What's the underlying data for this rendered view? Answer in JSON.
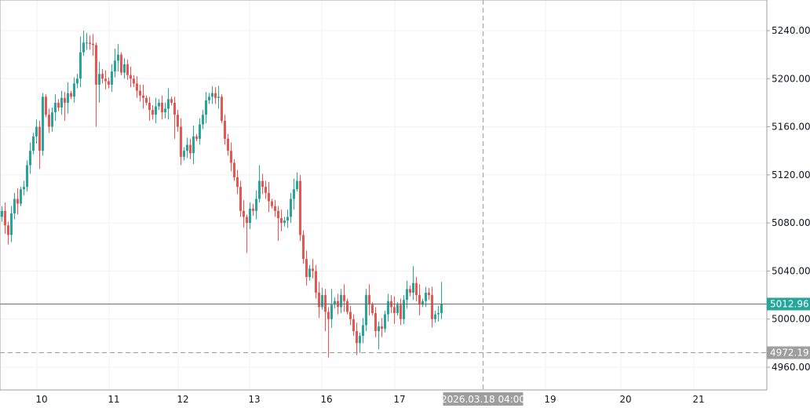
{
  "chart_data": {
    "type": "candlestick",
    "title": "",
    "colors": {
      "up": "#26a69a",
      "down": "#ef5350",
      "grid": "#f0f0f0",
      "axis": "#9e9e9e",
      "last_price_bg": "#26a69a",
      "crosshair_bg": "#9e9e9e"
    },
    "y_axis": {
      "range": [
        4940,
        5265
      ],
      "ticks": [
        "5240.00",
        "5200.00",
        "5160.00",
        "5120.00",
        "5080.00",
        "5040.00",
        "5000.00",
        "4960.00"
      ],
      "tick_values": [
        5240,
        5200,
        5160,
        5120,
        5080,
        5040,
        5000,
        4960
      ],
      "position": "right"
    },
    "x_axis": {
      "unit": "bar index",
      "range": [
        -0.5,
        243.75
      ],
      "labels": [
        {
          "text": "10",
          "bar": 12.75
        },
        {
          "text": "11",
          "bar": 35.75
        },
        {
          "text": "12",
          "bar": 57.75
        },
        {
          "text": "13",
          "bar": 80.5
        },
        {
          "text": "16",
          "bar": 103.5
        },
        {
          "text": "17",
          "bar": 126.75
        },
        {
          "text": "19",
          "bar": 174.75
        },
        {
          "text": "20",
          "bar": 198.75
        },
        {
          "text": "21",
          "bar": 222
        }
      ]
    },
    "last_price": {
      "value": 5012.96,
      "label": "5012.96"
    },
    "crosshair": {
      "price": 4972.19,
      "price_label": "4972.19",
      "bar": 153.25,
      "time_label": "2026.03.18 04:00"
    },
    "ohlc": [
      [
        5085,
        5094,
        5081,
        5090
      ],
      [
        5090,
        5097,
        5071,
        5078
      ],
      [
        5078,
        5081,
        5062,
        5070
      ],
      [
        5070,
        5094,
        5064,
        5088
      ],
      [
        5088,
        5105,
        5083,
        5100
      ],
      [
        5100,
        5109,
        5087,
        5096
      ],
      [
        5096,
        5110,
        5094,
        5108
      ],
      [
        5108,
        5115,
        5103,
        5110
      ],
      [
        5110,
        5132,
        5106,
        5128
      ],
      [
        5128,
        5147,
        5121,
        5140
      ],
      [
        5140,
        5155,
        5137,
        5152
      ],
      [
        5152,
        5166,
        5146,
        5160
      ],
      [
        5160,
        5165,
        5125,
        5140
      ],
      [
        5140,
        5188,
        5136,
        5185
      ],
      [
        5185,
        5187,
        5168,
        5170
      ],
      [
        5170,
        5175,
        5155,
        5160
      ],
      [
        5160,
        5176,
        5156,
        5172
      ],
      [
        5172,
        5187,
        5165,
        5180
      ],
      [
        5180,
        5183,
        5173,
        5176
      ],
      [
        5176,
        5190,
        5170,
        5184
      ],
      [
        5184,
        5189,
        5165,
        5180
      ],
      [
        5180,
        5197,
        5171,
        5188
      ],
      [
        5188,
        5190,
        5183,
        5185
      ],
      [
        5185,
        5201,
        5180,
        5196
      ],
      [
        5196,
        5204,
        5192,
        5200
      ],
      [
        5200,
        5235,
        5193,
        5222
      ],
      [
        5222,
        5240,
        5219,
        5230
      ],
      [
        5230,
        5238,
        5224,
        5230
      ],
      [
        5230,
        5236,
        5224,
        5229
      ],
      [
        5229,
        5237,
        5219,
        5228
      ],
      [
        5228,
        5230,
        5160,
        5195
      ],
      [
        5195,
        5214,
        5180,
        5204
      ],
      [
        5204,
        5208,
        5196,
        5200
      ],
      [
        5200,
        5207,
        5191,
        5198
      ],
      [
        5198,
        5201,
        5192,
        5195
      ],
      [
        5195,
        5212,
        5189,
        5206
      ],
      [
        5206,
        5225,
        5201,
        5215
      ],
      [
        5215,
        5229,
        5206,
        5220
      ],
      [
        5220,
        5222,
        5203,
        5205
      ],
      [
        5205,
        5217,
        5200,
        5212
      ],
      [
        5212,
        5216,
        5199,
        5203
      ],
      [
        5203,
        5210,
        5193,
        5200
      ],
      [
        5200,
        5203,
        5193,
        5196
      ],
      [
        5196,
        5202,
        5184,
        5190
      ],
      [
        5190,
        5195,
        5181,
        5186
      ],
      [
        5186,
        5195,
        5175,
        5184
      ],
      [
        5184,
        5186,
        5178,
        5180
      ],
      [
        5180,
        5185,
        5165,
        5174
      ],
      [
        5174,
        5178,
        5166,
        5170
      ],
      [
        5170,
        5184,
        5163,
        5177
      ],
      [
        5177,
        5183,
        5174,
        5180
      ],
      [
        5180,
        5186,
        5166,
        5172
      ],
      [
        5172,
        5180,
        5167,
        5175
      ],
      [
        5175,
        5192,
        5166,
        5183
      ],
      [
        5183,
        5185,
        5178,
        5180
      ],
      [
        5180,
        5185,
        5150,
        5170
      ],
      [
        5170,
        5174,
        5156,
        5160
      ],
      [
        5160,
        5167,
        5128,
        5135
      ],
      [
        5135,
        5143,
        5132,
        5140
      ],
      [
        5140,
        5151,
        5134,
        5145
      ],
      [
        5145,
        5150,
        5133,
        5138
      ],
      [
        5138,
        5161,
        5129,
        5152
      ],
      [
        5152,
        5154,
        5148,
        5150
      ],
      [
        5150,
        5167,
        5145,
        5162
      ],
      [
        5162,
        5174,
        5158,
        5170
      ],
      [
        5170,
        5189,
        5163,
        5182
      ],
      [
        5182,
        5188,
        5179,
        5185
      ],
      [
        5185,
        5194,
        5179,
        5188
      ],
      [
        5188,
        5193,
        5179,
        5184
      ],
      [
        5184,
        5194,
        5175,
        5185
      ],
      [
        5185,
        5187,
        5163,
        5165
      ],
      [
        5165,
        5170,
        5145,
        5150
      ],
      [
        5150,
        5154,
        5136,
        5140
      ],
      [
        5140,
        5147,
        5123,
        5130
      ],
      [
        5130,
        5133,
        5115,
        5118
      ],
      [
        5118,
        5124,
        5104,
        5110
      ],
      [
        5110,
        5115,
        5085,
        5090
      ],
      [
        5090,
        5099,
        5076,
        5085
      ],
      [
        5085,
        5087,
        5055,
        5080
      ],
      [
        5080,
        5097,
        5075,
        5092
      ],
      [
        5092,
        5096,
        5086,
        5090
      ],
      [
        5090,
        5107,
        5083,
        5100
      ],
      [
        5100,
        5128,
        5097,
        5115
      ],
      [
        5115,
        5121,
        5104,
        5110
      ],
      [
        5110,
        5115,
        5100,
        5105
      ],
      [
        5105,
        5114,
        5089,
        5098
      ],
      [
        5098,
        5100,
        5092,
        5094
      ],
      [
        5094,
        5099,
        5085,
        5090
      ],
      [
        5090,
        5094,
        5065,
        5084
      ],
      [
        5084,
        5091,
        5073,
        5080
      ],
      [
        5080,
        5085,
        5077,
        5082
      ],
      [
        5082,
        5091,
        5076,
        5085
      ],
      [
        5085,
        5105,
        5080,
        5100
      ],
      [
        5100,
        5117,
        5091,
        5108
      ],
      [
        5108,
        5122,
        5106,
        5115
      ],
      [
        5115,
        5120,
        5065,
        5070
      ],
      [
        5070,
        5074,
        5046,
        5050
      ],
      [
        5050,
        5057,
        5028,
        5035
      ],
      [
        5035,
        5045,
        5032,
        5042
      ],
      [
        5042,
        5050,
        5034,
        5040
      ],
      [
        5040,
        5045,
        5017,
        5022
      ],
      [
        5022,
        5031,
        5001,
        5010
      ],
      [
        5010,
        5026,
        5008,
        5020
      ],
      [
        5020,
        5025,
        4990,
        5006
      ],
      [
        5006,
        5010,
        4968,
        5000
      ],
      [
        5000,
        5025,
        4993,
        5012
      ],
      [
        5012,
        5018,
        5009,
        5015
      ],
      [
        5015,
        5021,
        5004,
        5010
      ],
      [
        5010,
        5025,
        5005,
        5020
      ],
      [
        5020,
        5029,
        5006,
        5015
      ],
      [
        5015,
        5017,
        5004,
        5006
      ],
      [
        5006,
        5011,
        4995,
        5000
      ],
      [
        5000,
        5004,
        4986,
        4990
      ],
      [
        4990,
        4997,
        4970,
        4980
      ],
      [
        4980,
        4989,
        4972,
        4986
      ],
      [
        4986,
        5001,
        4980,
        4995
      ],
      [
        4995,
        5025,
        4990,
        5020
      ],
      [
        5020,
        5029,
        5003,
        5012
      ],
      [
        5012,
        5014,
        5003,
        5005
      ],
      [
        5005,
        5010,
        4985,
        4990
      ],
      [
        4990,
        4998,
        4975,
        4994
      ],
      [
        4994,
        5001,
        4985,
        4992
      ],
      [
        4992,
        5007,
        4989,
        5004
      ],
      [
        5004,
        5021,
        4998,
        5015
      ],
      [
        5015,
        5020,
        5005,
        5010
      ],
      [
        5010,
        5019,
        4996,
        5005
      ],
      [
        5005,
        5014,
        5003,
        5012
      ],
      [
        5012,
        5017,
        4995,
        5000
      ],
      [
        5000,
        5020,
        4996,
        5016
      ],
      [
        5016,
        5032,
        5009,
        5025
      ],
      [
        5025,
        5028,
        5019,
        5022
      ],
      [
        5022,
        5044,
        5016,
        5030
      ],
      [
        5030,
        5035,
        5015,
        5020
      ],
      [
        5020,
        5029,
        5003,
        5012
      ],
      [
        5012,
        5017,
        5010,
        5015
      ],
      [
        5015,
        5027,
        5010,
        5022
      ],
      [
        5022,
        5026,
        5016,
        5020
      ],
      [
        5020,
        5027,
        4993,
        5000
      ],
      [
        5000,
        5007,
        4997,
        5004
      ],
      [
        5004,
        5011,
        4998,
        5005
      ],
      [
        5005,
        5031,
        5000,
        5012.96
      ]
    ]
  }
}
